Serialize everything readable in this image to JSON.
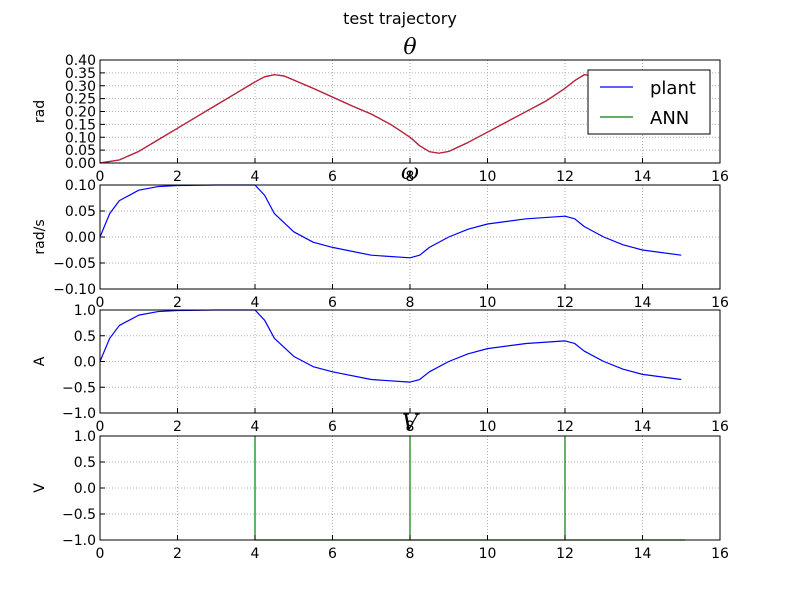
{
  "figure": {
    "suptitle": "test trajectory"
  },
  "colors": {
    "plant": "#0000ff",
    "ANN": "#008000",
    "theta_overlay": "#cc1f1f",
    "grid": "#b0b0b0"
  },
  "chart_data": [
    {
      "type": "line",
      "title": "θ",
      "xlabel": "",
      "ylabel": "rad",
      "xlim": [
        0,
        16
      ],
      "ylim": [
        0,
        0.4
      ],
      "xticks": [
        "0",
        "2",
        "4",
        "6",
        "8",
        "10",
        "12",
        "14",
        "16"
      ],
      "yticks": [
        "0.00",
        "0.05",
        "0.10",
        "0.15",
        "0.20",
        "0.25",
        "0.30",
        "0.35",
        "0.40"
      ],
      "grid": true,
      "legend": "top-right",
      "series": [
        {
          "name": "plant",
          "x": [
            0,
            0.5,
            1,
            1.5,
            2,
            2.5,
            3,
            3.5,
            4,
            4.25,
            4.5,
            4.75,
            5,
            5.5,
            6,
            6.5,
            7,
            7.5,
            8,
            8.25,
            8.5,
            8.75,
            9,
            9.5,
            10,
            10.5,
            11,
            11.5,
            12,
            12.25,
            12.5,
            12.75,
            13,
            13.5,
            14,
            14.5,
            15
          ],
          "values": [
            0,
            0.012,
            0.045,
            0.09,
            0.135,
            0.18,
            0.225,
            0.27,
            0.315,
            0.335,
            0.343,
            0.338,
            0.322,
            0.29,
            0.256,
            0.222,
            0.19,
            0.15,
            0.1,
            0.067,
            0.044,
            0.038,
            0.045,
            0.08,
            0.12,
            0.16,
            0.2,
            0.24,
            0.29,
            0.32,
            0.343,
            0.338,
            0.322,
            0.29,
            0.256,
            0.222,
            0.19
          ]
        },
        {
          "name": "ANN",
          "x": [
            0,
            0.5,
            1,
            1.5,
            2,
            2.5,
            3,
            3.5,
            4,
            4.25,
            4.5,
            4.75,
            5,
            5.5,
            6,
            6.5,
            7,
            7.5,
            8,
            8.25,
            8.5,
            8.75,
            9,
            9.5,
            10,
            10.5,
            11,
            11.5,
            12,
            12.25,
            12.5,
            12.75,
            13,
            13.5,
            14,
            14.5,
            15
          ],
          "values": [
            0,
            0.012,
            0.045,
            0.09,
            0.135,
            0.18,
            0.225,
            0.27,
            0.315,
            0.335,
            0.343,
            0.338,
            0.322,
            0.29,
            0.256,
            0.222,
            0.19,
            0.15,
            0.1,
            0.067,
            0.044,
            0.038,
            0.045,
            0.08,
            0.12,
            0.16,
            0.2,
            0.24,
            0.29,
            0.32,
            0.343,
            0.338,
            0.322,
            0.29,
            0.256,
            0.222,
            0.19
          ]
        }
      ]
    },
    {
      "type": "line",
      "title": "ω",
      "xlabel": "",
      "ylabel": "rad/s",
      "xlim": [
        0,
        16
      ],
      "ylim": [
        -0.1,
        0.1
      ],
      "xticks": [
        "0",
        "2",
        "4",
        "6",
        "8",
        "10",
        "12",
        "14",
        "16"
      ],
      "yticks": [
        "−0.10",
        "−0.05",
        "0.00",
        "0.05",
        "0.10"
      ],
      "grid": true,
      "series": [
        {
          "name": "plant",
          "x": [
            0,
            0.25,
            0.5,
            1,
            1.5,
            2,
            3,
            4,
            4.25,
            4.5,
            5,
            5.5,
            6,
            7,
            8,
            8.25,
            8.5,
            9,
            9.5,
            10,
            11,
            12,
            12.25,
            12.5,
            13,
            13.5,
            14,
            15
          ],
          "values": [
            0,
            0.045,
            0.07,
            0.09,
            0.097,
            0.099,
            0.1,
            0.1,
            0.08,
            0.045,
            0.01,
            -0.01,
            -0.02,
            -0.035,
            -0.04,
            -0.035,
            -0.02,
            0,
            0.015,
            0.025,
            0.035,
            0.04,
            0.035,
            0.02,
            0,
            -0.015,
            -0.025,
            -0.035
          ]
        }
      ]
    },
    {
      "type": "line",
      "title": "",
      "xlabel": "",
      "ylabel": "A",
      "xlim": [
        0,
        16
      ],
      "ylim": [
        -1,
        1
      ],
      "xticks": [
        "0",
        "2",
        "4",
        "6",
        "8",
        "10",
        "12",
        "14",
        "16"
      ],
      "yticks": [
        "−1.0",
        "−0.5",
        "0.0",
        "0.5",
        "1.0"
      ],
      "grid": true,
      "series": [
        {
          "name": "plant",
          "x": [
            0,
            0.25,
            0.5,
            1,
            1.5,
            2,
            3,
            4,
            4.25,
            4.5,
            5,
            5.5,
            6,
            7,
            8,
            8.25,
            8.5,
            9,
            9.5,
            10,
            11,
            12,
            12.25,
            12.5,
            13,
            13.5,
            14,
            15
          ],
          "values": [
            0,
            0.45,
            0.7,
            0.9,
            0.97,
            0.99,
            1,
            1,
            0.8,
            0.45,
            0.1,
            -0.1,
            -0.2,
            -0.35,
            -0.4,
            -0.35,
            -0.2,
            0,
            0.15,
            0.25,
            0.35,
            0.4,
            0.35,
            0.2,
            0,
            -0.15,
            -0.25,
            -0.35
          ]
        }
      ]
    },
    {
      "type": "line",
      "title": "V",
      "xlabel": "",
      "ylabel": "V",
      "xlim": [
        0,
        16
      ],
      "ylim": [
        -1,
        1
      ],
      "xticks": [
        "0",
        "2",
        "4",
        "6",
        "8",
        "10",
        "12",
        "14",
        "16"
      ],
      "yticks": [
        "−1.0",
        "−0.5",
        "0.0",
        "0.5",
        "1.0"
      ],
      "grid": true,
      "series": [
        {
          "name": "ANN",
          "x": [
            4,
            4,
            4,
            8,
            8,
            8,
            12,
            12,
            12,
            15.1
          ],
          "values": [
            1,
            -1,
            -1,
            -1,
            1,
            -1,
            -1,
            1,
            -1,
            -1
          ]
        }
      ]
    }
  ]
}
